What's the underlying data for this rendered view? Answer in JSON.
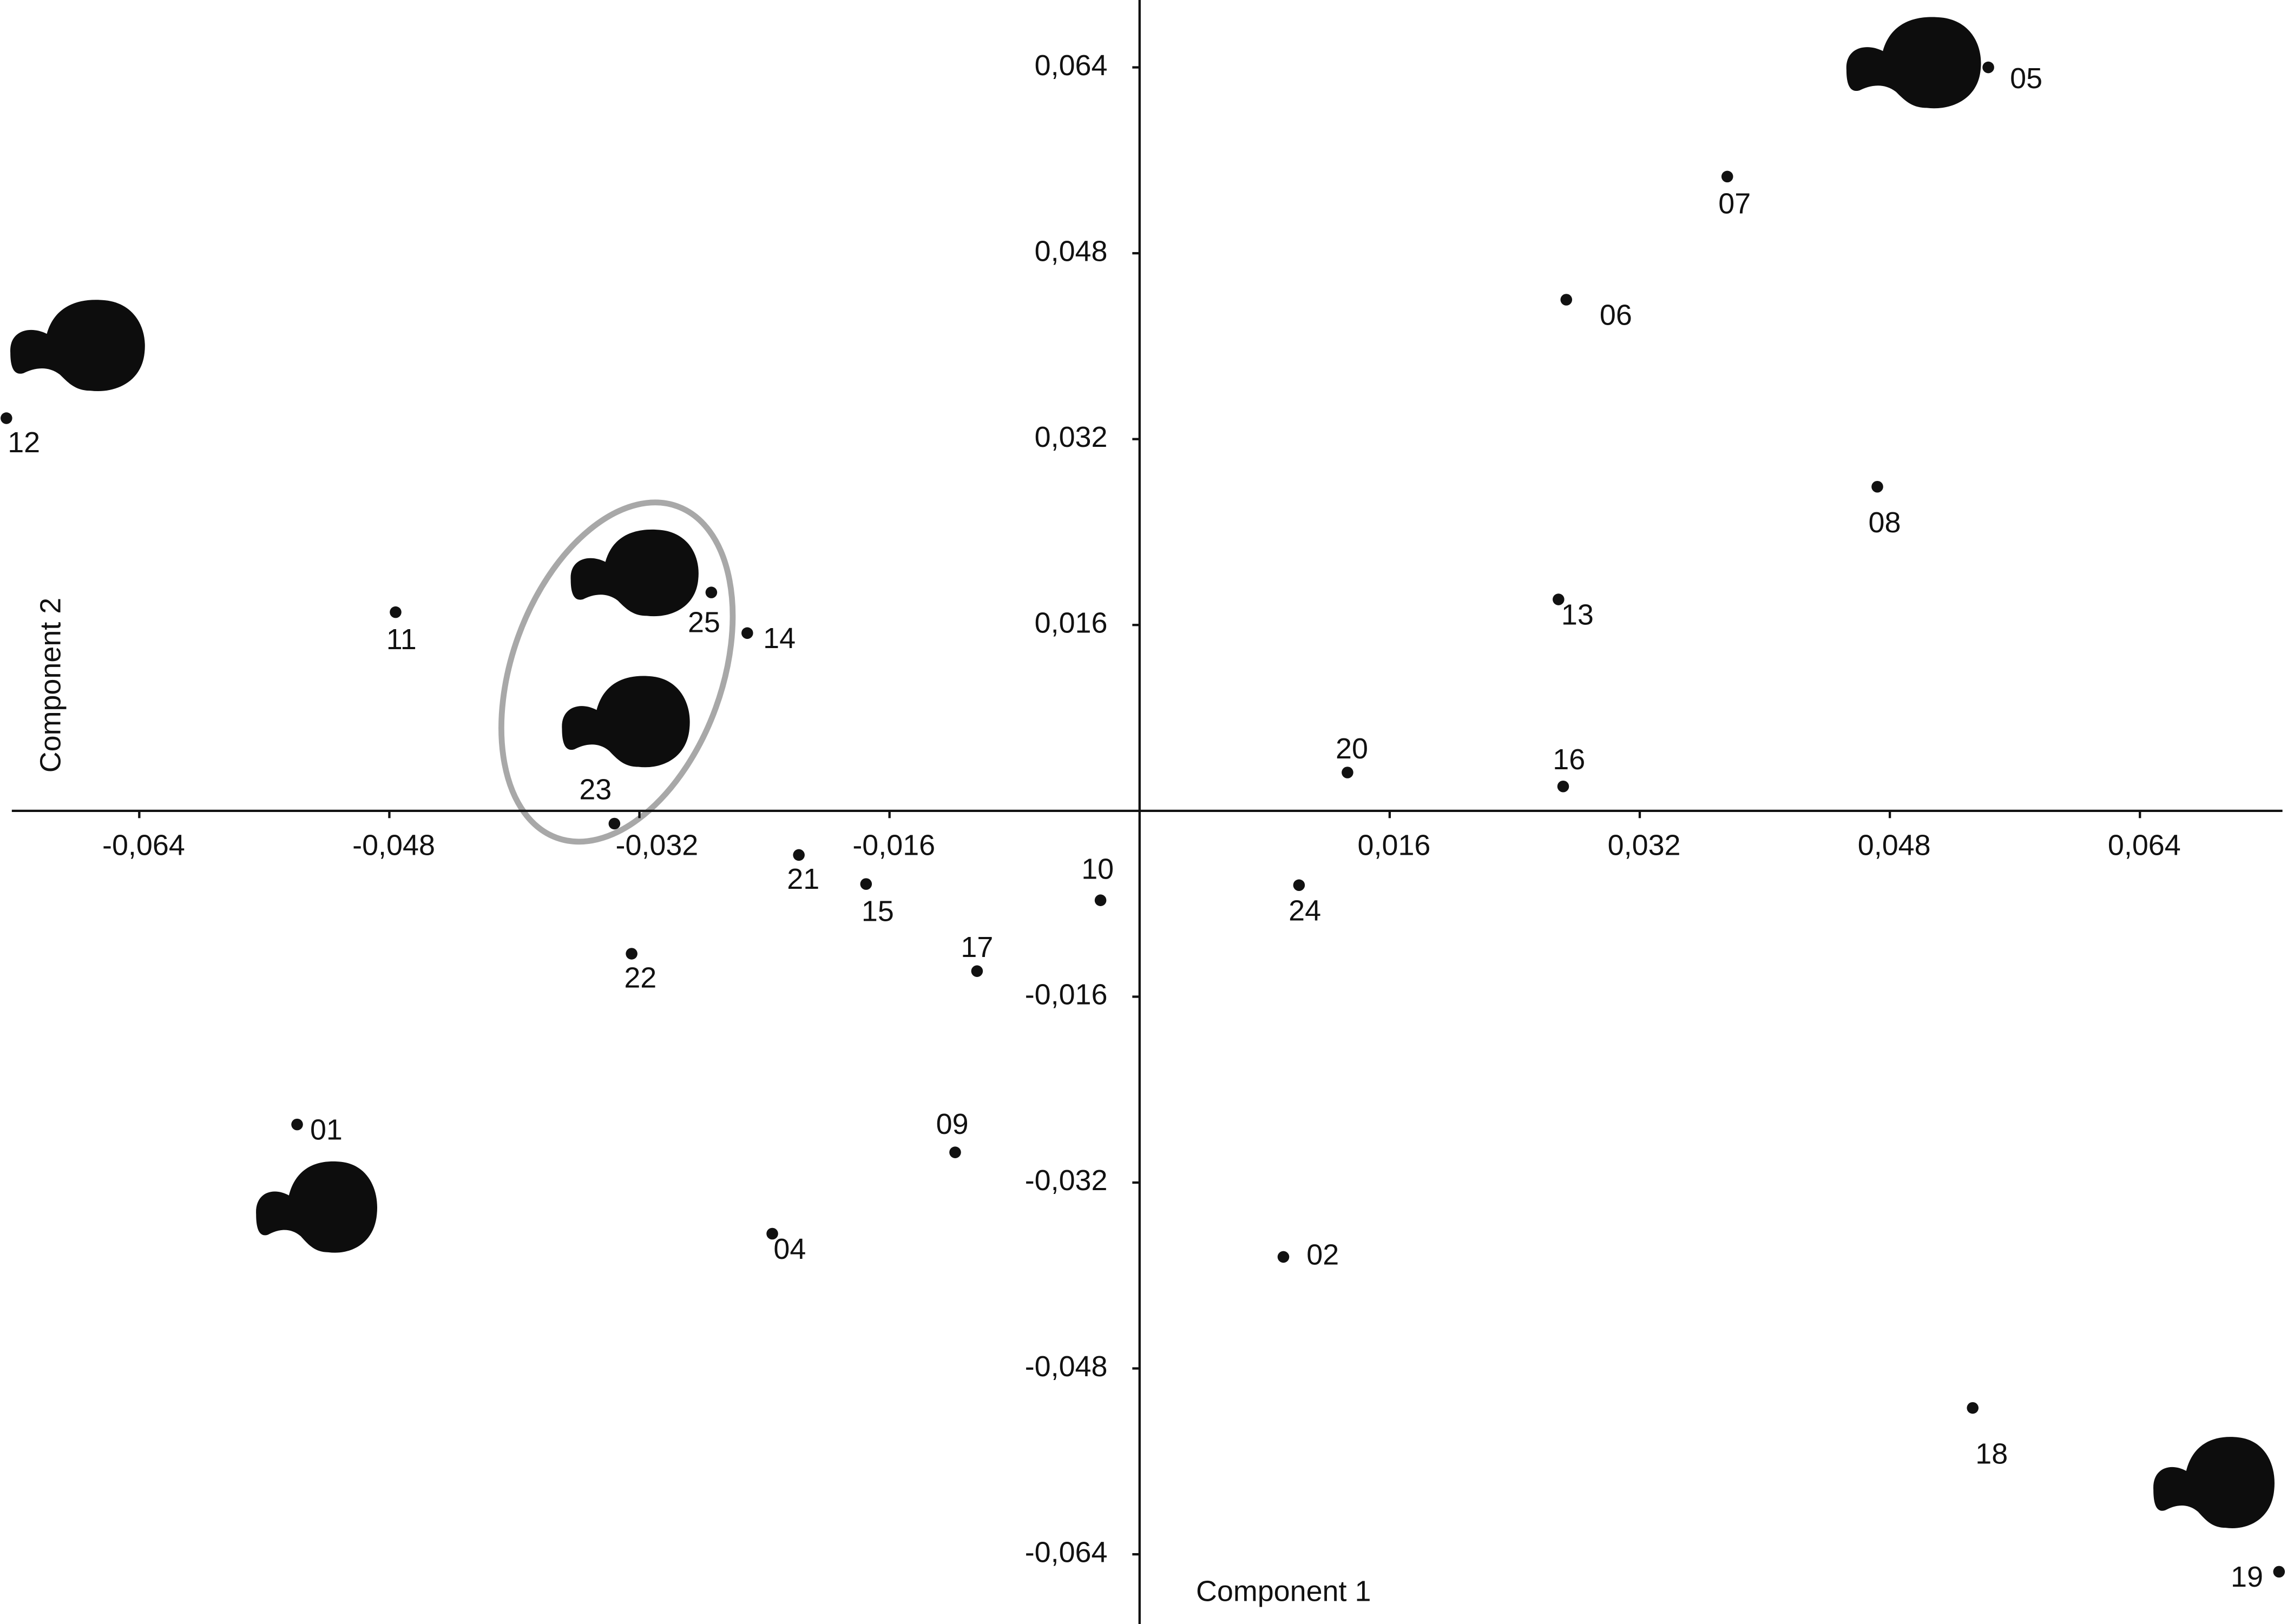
{
  "chart_data": {
    "type": "scatter",
    "x_label": "Component 1",
    "y_label": "Component 2",
    "labels": [
      "01",
      "02",
      "04",
      "05",
      "06",
      "07",
      "08",
      "09",
      "10",
      "11",
      "12",
      "13",
      "14",
      "15",
      "16",
      "17",
      "18",
      "19",
      "20",
      "21",
      "22",
      "23",
      "24",
      "25"
    ],
    "x": [
      -0.0539,
      0.0092,
      -0.0235,
      0.0543,
      0.0273,
      0.0376,
      0.0472,
      -0.0118,
      -0.0025,
      -0.0476,
      -0.0725,
      0.0268,
      -0.0251,
      -0.0175,
      0.0271,
      -0.0104,
      0.0533,
      0.0729,
      0.0133,
      -0.0218,
      -0.0325,
      -0.0336,
      0.0102,
      -0.0274
    ],
    "values": [
      -0.027,
      -0.0384,
      -0.0364,
      0.064,
      0.044,
      0.0546,
      0.0279,
      -0.0294,
      -0.0077,
      0.0171,
      0.0338,
      0.0182,
      0.0153,
      -0.0063,
      0.0021,
      -0.0138,
      -0.0514,
      -0.0655,
      0.0033,
      -0.0038,
      -0.0123,
      -0.0011,
      -0.0064,
      0.0188
    ],
    "color": "#111111",
    "xlim": [
      -0.0729,
      0.0734
    ],
    "ylim": [
      -0.07,
      0.0698
    ],
    "xticks": [
      {
        "value": -0.064,
        "label": "-0,064"
      },
      {
        "value": -0.048,
        "label": "-0,048"
      },
      {
        "value": -0.032,
        "label": "-0,032"
      },
      {
        "value": -0.016,
        "label": "-0,016"
      },
      {
        "value": 0.016,
        "label": "0,016"
      },
      {
        "value": 0.032,
        "label": "0,032"
      },
      {
        "value": 0.048,
        "label": "0,048"
      },
      {
        "value": 0.064,
        "label": "0,064"
      }
    ],
    "yticks": [
      {
        "value": 0.064,
        "label": "0,064"
      },
      {
        "value": 0.048,
        "label": "0,048"
      },
      {
        "value": 0.032,
        "label": "0,032"
      },
      {
        "value": 0.016,
        "label": "0,016"
      },
      {
        "value": -0.016,
        "label": "-0,016"
      },
      {
        "value": -0.032,
        "label": "-0,032"
      },
      {
        "value": -0.048,
        "label": "-0,048"
      },
      {
        "value": -0.064,
        "label": "-0,064"
      }
    ],
    "grid": false
  }
}
